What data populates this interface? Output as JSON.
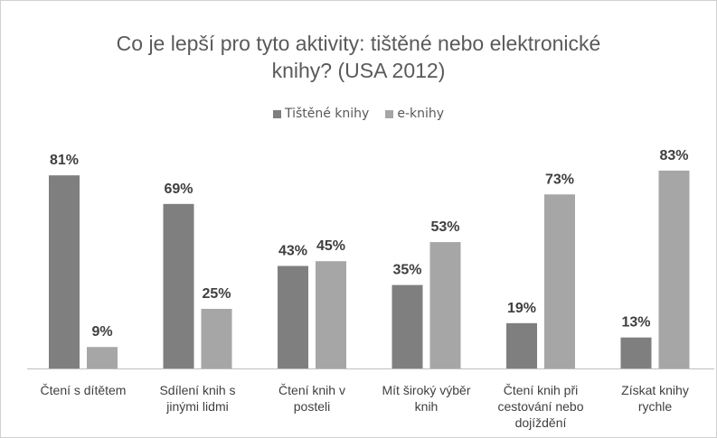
{
  "title_line1": "Co je lepší pro tyto aktivity: tištěné nebo elektronické",
  "title_line2": "knihy? (USA 2012)",
  "legend": [
    {
      "label": "Tištěné knihy",
      "color": "#7f7f7f"
    },
    {
      "label": "e-knihy",
      "color": "#a6a6a6"
    }
  ],
  "chart_data": {
    "type": "bar",
    "categories": [
      [
        "Čtení s dítětem"
      ],
      [
        "Sdílení knih s",
        "jinými lidmi"
      ],
      [
        "Čtení knih v",
        "posteli"
      ],
      [
        "Mít široký výběr",
        "knih"
      ],
      [
        "Čtení knih při",
        "cestování nebo",
        "dojíždění"
      ],
      [
        "Získat knihy",
        "rychle"
      ]
    ],
    "series": [
      {
        "name": "Tištěné knihy",
        "color": "#7f7f7f",
        "values": [
          81,
          69,
          43,
          35,
          19,
          13
        ],
        "labels": [
          "81%",
          "69%",
          "43%",
          "35%",
          "19%",
          "13%"
        ]
      },
      {
        "name": "e-knihy",
        "color": "#a6a6a6",
        "values": [
          9,
          25,
          45,
          53,
          73,
          83
        ],
        "labels": [
          "9%",
          "25%",
          "45%",
          "53%",
          "73%",
          "83%"
        ]
      }
    ],
    "ylim": [
      0,
      100
    ],
    "grid": false,
    "legend_position": "top"
  }
}
